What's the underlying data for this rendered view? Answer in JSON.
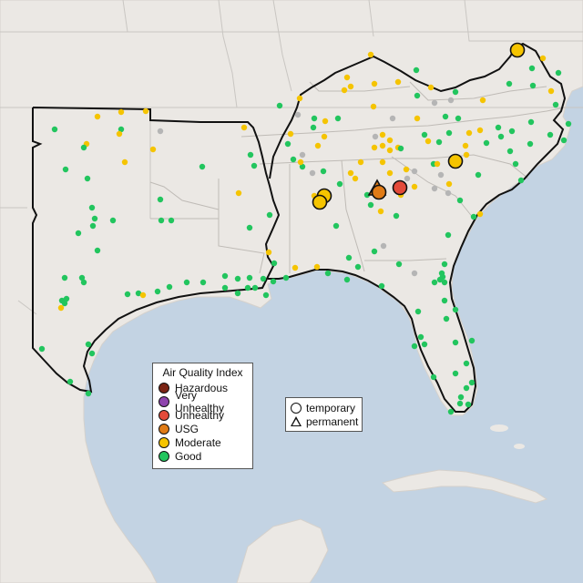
{
  "colors": {
    "good": "#22c55e",
    "moderate": "#f5c400",
    "usg": "#e07b16",
    "unhealthy": "#e34a3a",
    "very_unhealthy": "#8e44ad",
    "hazardous": "#7b2414",
    "no_data": "#b5b5b5",
    "land": "#ebe8e4",
    "water": "#c3d3e3"
  },
  "aqi_legend": {
    "title": "Air Quality Index",
    "items": [
      {
        "label": "Hazardous",
        "color": "#7b2414"
      },
      {
        "label": "Very Unhealthy",
        "color": "#8e44ad"
      },
      {
        "label": "Unhealthy",
        "color": "#e34a3a"
      },
      {
        "label": "USG",
        "color": "#e07b16"
      },
      {
        "label": "Moderate",
        "color": "#f5c400"
      },
      {
        "label": "Good",
        "color": "#22c55e"
      }
    ]
  },
  "type_legend": {
    "temporary": "temporary",
    "permanent": "permanent"
  }
}
